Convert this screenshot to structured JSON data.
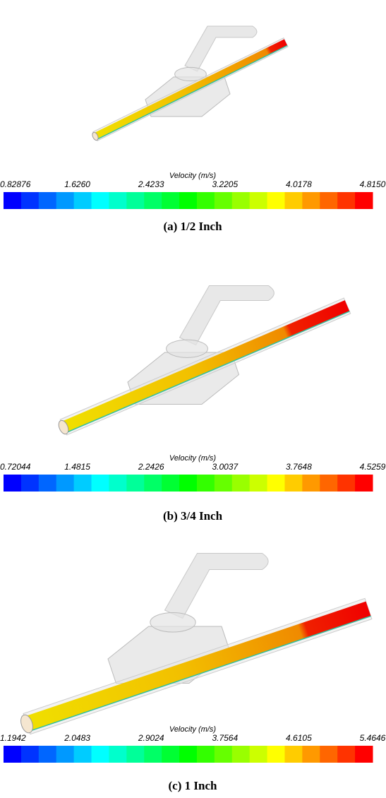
{
  "panels": [
    {
      "colorbar": {
        "title": "Velocity (m/s)",
        "ticks": [
          "0.82876",
          "1.6260",
          "2.4233",
          "3.2205",
          "4.0178",
          "4.8150"
        ]
      },
      "caption": "(a)  1/2  Inch"
    },
    {
      "colorbar": {
        "title": "Velocity (m/s)",
        "ticks": [
          "0.72044",
          "1.4815",
          "2.2426",
          "3.0037",
          "3.7648",
          "4.5259"
        ]
      },
      "caption": "(b)  3/4  Inch"
    },
    {
      "colorbar": {
        "title": "Velocity (m/s)",
        "ticks": [
          "1.1942",
          "2.0483",
          "2.9024",
          "3.7564",
          "4.6105",
          "5.4646"
        ]
      },
      "caption": "(c)  1  Inch"
    }
  ]
}
